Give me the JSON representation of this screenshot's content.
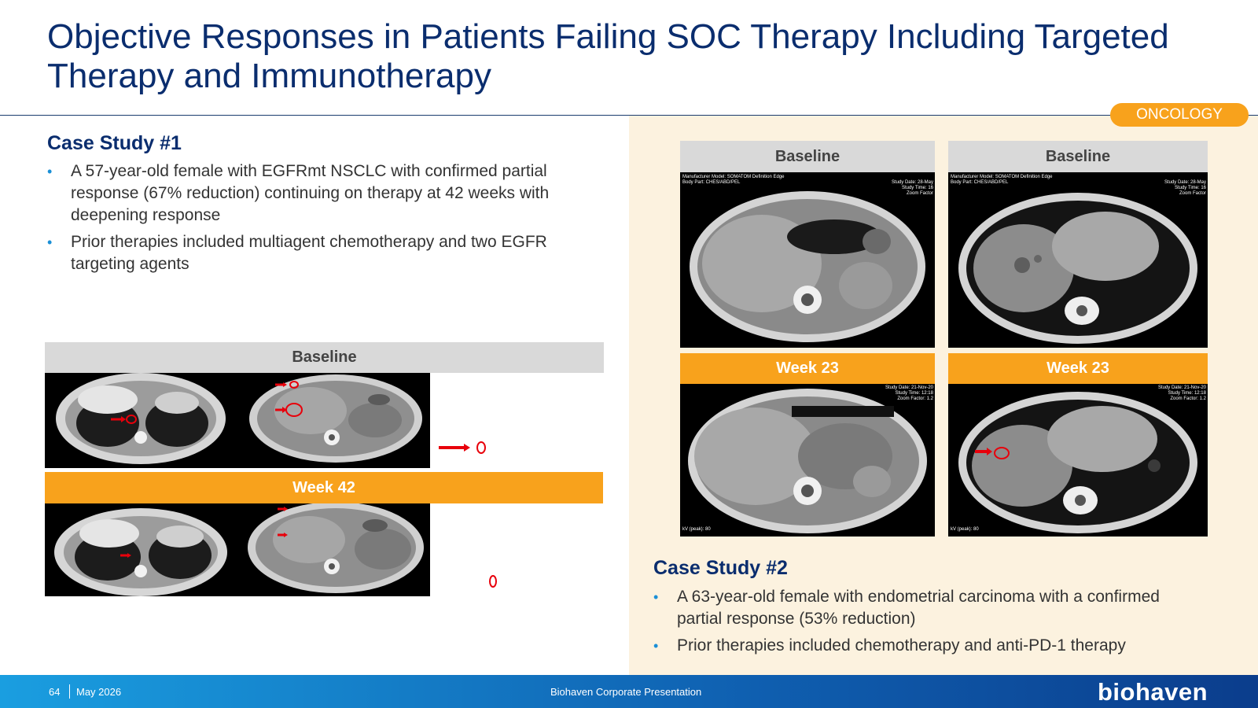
{
  "slide": {
    "title_line1": "Objective Responses in Patients Failing SOC Therapy Including Targeted",
    "title_line2": "Therapy and Immunotherapy",
    "badge": "ONCOLOGY"
  },
  "case1": {
    "title": "Case Study #1",
    "bullets": [
      "A 57-year-old female with EGFRmt NSCLC with confirmed partial response (67% reduction) continuing on therapy at 42 weeks with deepening response",
      "Prior therapies included multiagent chemotherapy and two EGFR targeting agents"
    ],
    "label_top": "Baseline",
    "label_bottom": "Week 42"
  },
  "case2": {
    "title": "Case Study #2",
    "bullets": [
      " A 63-year-old female with endometrial carcinoma with a confirmed partial response (53% reduction)",
      "Prior therapies included chemotherapy and anti-PD-1 therapy"
    ],
    "labels": [
      "Baseline",
      "Baseline",
      "Week 23",
      "Week 23"
    ],
    "scan_meta": {
      "left": "Manufacturer Model: SOMATOM Definition Edge\nBody Part: CHES/ABD/PEL",
      "top_right": "Study Date: 28-May\nStudy Time: 16\nZoom Factor",
      "bottom_right": "Study Date: 21-Nov-20\nStudy Time: 12:18\nZoom Factor: 1.2",
      "kv": "kV (peak): 80"
    }
  },
  "footer": {
    "page_number": "64",
    "date": "May 2026",
    "center_text": "Biohaven Corporate Presentation",
    "logo": "biohaven"
  },
  "colors": {
    "title": "#0a2d6e",
    "accent_orange": "#f8a21c",
    "bullet_dot": "#1a8fd6",
    "panel_bg": "#fcf2df",
    "annotation_red": "#e8000b"
  },
  "icons": {
    "bullet": "•"
  }
}
